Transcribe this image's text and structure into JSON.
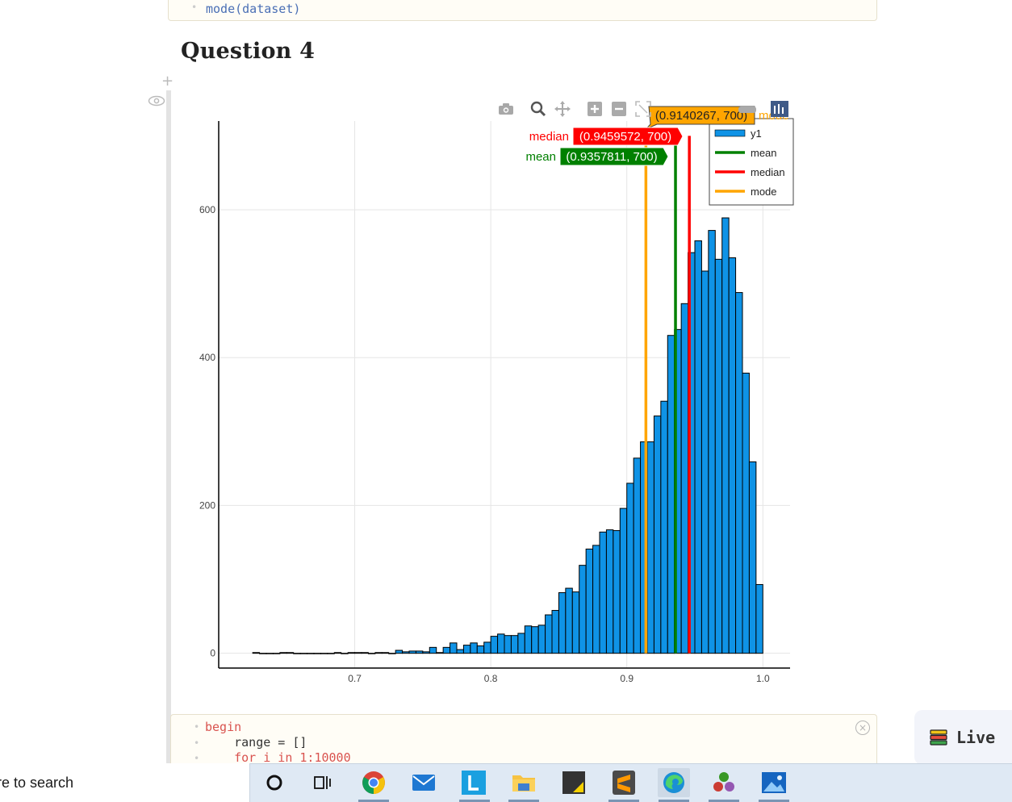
{
  "notebook": {
    "top_cell_code": "mode(dataset)",
    "heading": "Question 4",
    "bottom_cell_lines": [
      "begin",
      "    range = []",
      "    for i in 1:10000"
    ]
  },
  "chart_data": {
    "type": "bar",
    "subtype": "histogram",
    "bin_width": 0.005,
    "x_bin_starts": [
      0.625,
      0.63,
      0.635,
      0.64,
      0.645,
      0.65,
      0.655,
      0.66,
      0.665,
      0.67,
      0.675,
      0.68,
      0.685,
      0.69,
      0.695,
      0.7,
      0.705,
      0.71,
      0.715,
      0.72,
      0.725,
      0.73,
      0.735,
      0.74,
      0.745,
      0.75,
      0.755,
      0.76,
      0.765,
      0.77,
      0.775,
      0.78,
      0.785,
      0.79,
      0.795,
      0.8,
      0.805,
      0.81,
      0.815,
      0.82,
      0.825,
      0.83,
      0.835,
      0.84,
      0.845,
      0.85,
      0.855,
      0.86,
      0.865,
      0.87,
      0.875,
      0.88,
      0.885,
      0.89,
      0.895,
      0.9,
      0.905,
      0.91,
      0.915,
      0.92,
      0.925,
      0.93,
      0.935,
      0.94,
      0.945,
      0.95,
      0.955,
      0.96,
      0.965,
      0.97,
      0.975,
      0.98,
      0.985,
      0.99,
      0.995
    ],
    "values": [
      1,
      0,
      0,
      0,
      1,
      1,
      0,
      0,
      0,
      0,
      0,
      0,
      1,
      0,
      1,
      1,
      1,
      0,
      1,
      1,
      0,
      4,
      2,
      3,
      3,
      2,
      8,
      1,
      8,
      14,
      5,
      11,
      14,
      10,
      15,
      23,
      26,
      24,
      24,
      27,
      37,
      36,
      38,
      52,
      58,
      82,
      88,
      83,
      119,
      141,
      146,
      164,
      167,
      166,
      196,
      230,
      264,
      286,
      286,
      321,
      341,
      430,
      438,
      473,
      542,
      558,
      517,
      572,
      533,
      589,
      535,
      488,
      379,
      259,
      93
    ],
    "series_name": "y1",
    "xlim": [
      0.6,
      1.02
    ],
    "ylim": [
      -20,
      720
    ],
    "x_ticks": [
      0.7,
      0.8,
      0.9,
      1.0
    ],
    "x_tick_labels": [
      "0.7",
      "0.8",
      "0.9",
      "1.0"
    ],
    "y_ticks": [
      0,
      200,
      400,
      600
    ],
    "y_tick_labels": [
      "0",
      "200",
      "400",
      "600"
    ],
    "grid": true,
    "legend_position": "top-right",
    "bar_color": "#0f93e6",
    "lines": [
      {
        "name": "mean",
        "x": 0.9357811,
        "top": 700,
        "color": "#008000",
        "hover": "(0.9357811, 700)"
      },
      {
        "name": "median",
        "x": 0.9459572,
        "top": 700,
        "color": "#ff0000",
        "hover": "(0.9459572, 700)"
      },
      {
        "name": "mode",
        "x": 0.9140267,
        "top": 700,
        "color": "#ffa500",
        "hover": "(0.9140267, 700)"
      }
    ],
    "legend": [
      "y1",
      "mean",
      "median",
      "mode"
    ]
  },
  "toolbar_icons": [
    "camera-icon",
    "zoom-icon",
    "pan-icon",
    "zoom-in-icon",
    "zoom-out-icon",
    "autoscale-icon"
  ],
  "live_panel": {
    "label": "Live"
  },
  "taskbar": {
    "search_text": "re to search",
    "apps": [
      "cortana",
      "task-view",
      "chrome",
      "mail",
      "lunacy",
      "file-explorer",
      "sticky-notes",
      "sublime-text",
      "edge",
      "julia",
      "photos"
    ]
  }
}
